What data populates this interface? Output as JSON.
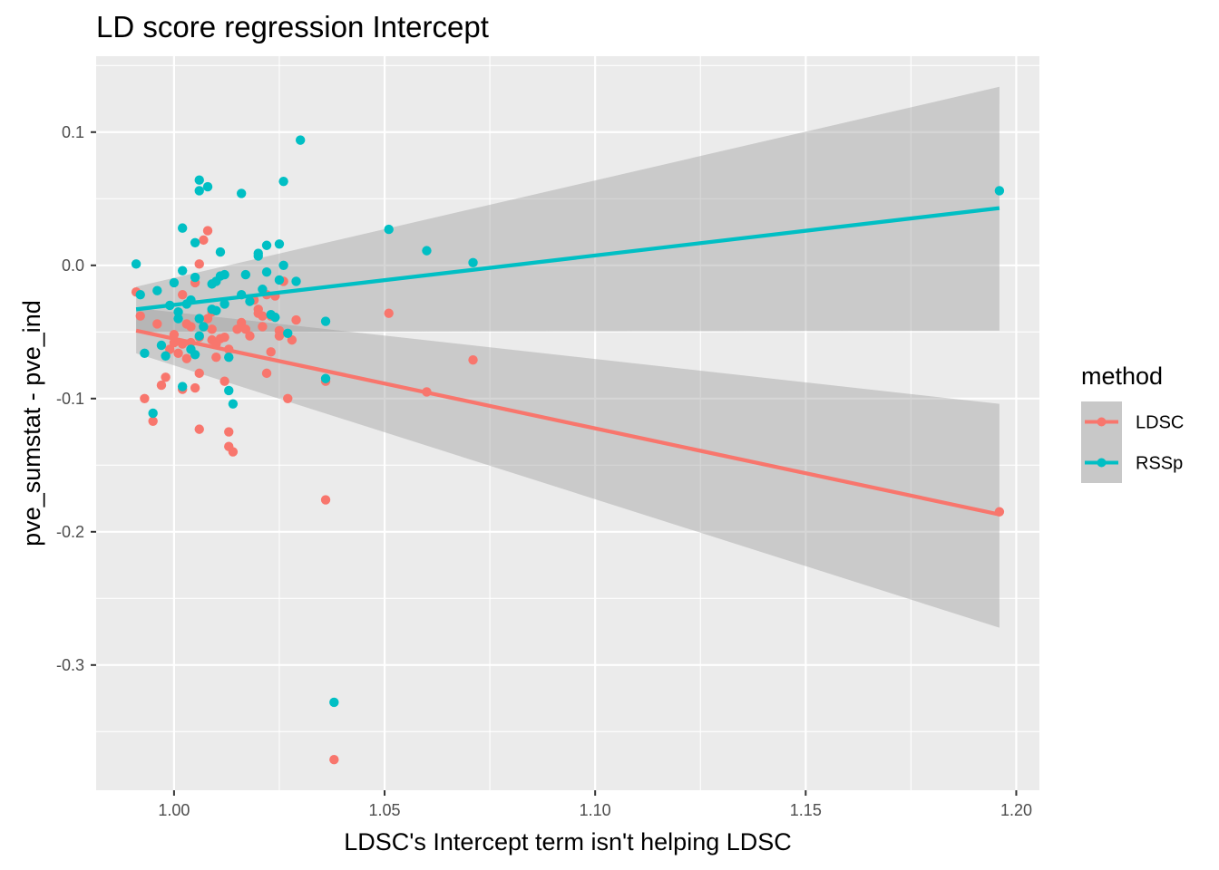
{
  "chart_data": {
    "type": "scatter",
    "title": "LD score regression Intercept",
    "xlabel": "LDSC's Intercept term isn't helping LDSC",
    "ylabel": "pve_sumstat - pve_ind",
    "xlim": [
      0.9815,
      1.2055
    ],
    "ylim": [
      -0.394,
      0.157
    ],
    "x_ticks": [
      1.0,
      1.05,
      1.1,
      1.15,
      1.2
    ],
    "x_tick_labels": [
      "1.00",
      "1.05",
      "1.10",
      "1.15",
      "1.20"
    ],
    "y_ticks": [
      -0.3,
      -0.2,
      -0.1,
      0.0,
      0.1
    ],
    "y_tick_labels": [
      "-0.3",
      "-0.2",
      "-0.1",
      "0.0",
      "0.1"
    ],
    "grid": true,
    "legend": {
      "title": "method",
      "position": "right"
    },
    "series": [
      {
        "name": "LDSC",
        "color": "#F8766D",
        "trend": {
          "x": [
            0.991,
            1.196
          ],
          "y": [
            -0.049,
            -0.187
          ],
          "ci_lower": [
            -0.066,
            -0.272
          ],
          "ci_upper": [
            -0.032,
            -0.104
          ]
        },
        "points": [
          [
            0.991,
            -0.02
          ],
          [
            0.992,
            -0.038
          ],
          [
            0.993,
            -0.1
          ],
          [
            0.995,
            -0.117
          ],
          [
            0.996,
            -0.044
          ],
          [
            0.997,
            -0.09
          ],
          [
            0.998,
            -0.084
          ],
          [
            0.999,
            -0.063
          ],
          [
            1.0,
            -0.058
          ],
          [
            1.0,
            -0.052
          ],
          [
            1.001,
            -0.066
          ],
          [
            1.002,
            -0.059
          ],
          [
            1.002,
            -0.093
          ],
          [
            1.002,
            -0.022
          ],
          [
            1.003,
            -0.044
          ],
          [
            1.003,
            -0.07
          ],
          [
            1.004,
            -0.058
          ],
          [
            1.004,
            -0.046
          ],
          [
            1.005,
            -0.092
          ],
          [
            1.005,
            -0.013
          ],
          [
            1.006,
            0.001
          ],
          [
            1.006,
            -0.054
          ],
          [
            1.006,
            -0.081
          ],
          [
            1.006,
            -0.123
          ],
          [
            1.007,
            -0.046
          ],
          [
            1.008,
            0.026
          ],
          [
            1.008,
            -0.04
          ],
          [
            1.009,
            -0.056
          ],
          [
            1.009,
            -0.048
          ],
          [
            1.009,
            -0.035
          ],
          [
            1.01,
            -0.059
          ],
          [
            1.01,
            -0.069
          ],
          [
            1.011,
            -0.055
          ],
          [
            1.012,
            -0.054
          ],
          [
            1.012,
            -0.087
          ],
          [
            1.013,
            -0.125
          ],
          [
            1.013,
            -0.136
          ],
          [
            1.013,
            -0.063
          ],
          [
            1.014,
            -0.14
          ],
          [
            1.015,
            -0.048
          ],
          [
            1.016,
            -0.043
          ],
          [
            1.016,
            -0.046
          ],
          [
            1.017,
            -0.048
          ],
          [
            1.018,
            -0.053
          ],
          [
            1.019,
            -0.026
          ],
          [
            1.02,
            -0.036
          ],
          [
            1.02,
            -0.033
          ],
          [
            1.021,
            -0.038
          ],
          [
            1.021,
            -0.046
          ],
          [
            1.022,
            -0.081
          ],
          [
            1.022,
            -0.022
          ],
          [
            1.023,
            -0.038
          ],
          [
            1.023,
            -0.065
          ],
          [
            1.024,
            -0.023
          ],
          [
            1.025,
            -0.049
          ],
          [
            1.025,
            -0.053
          ],
          [
            1.026,
            -0.012
          ],
          [
            1.027,
            -0.1
          ],
          [
            1.028,
            -0.056
          ],
          [
            1.029,
            -0.041
          ],
          [
            1.036,
            -0.087
          ],
          [
            1.036,
            -0.176
          ],
          [
            1.038,
            -0.371
          ],
          [
            1.051,
            -0.036
          ],
          [
            1.06,
            -0.095
          ],
          [
            1.071,
            -0.071
          ],
          [
            1.196,
            -0.185
          ],
          [
            1.007,
            0.019
          ]
        ]
      },
      {
        "name": "RSSp",
        "color": "#00BFC4",
        "trend": {
          "x": [
            0.991,
            1.196
          ],
          "y": [
            -0.033,
            0.043
          ],
          "ci_lower": [
            -0.05,
            -0.049
          ],
          "ci_upper": [
            -0.016,
            0.134
          ]
        },
        "points": [
          [
            0.991,
            0.001
          ],
          [
            0.992,
            -0.022
          ],
          [
            0.993,
            -0.066
          ],
          [
            0.995,
            -0.111
          ],
          [
            0.996,
            -0.019
          ],
          [
            0.997,
            -0.06
          ],
          [
            0.998,
            -0.068
          ],
          [
            0.999,
            -0.03
          ],
          [
            1.0,
            -0.013
          ],
          [
            1.001,
            -0.04
          ],
          [
            1.001,
            -0.035
          ],
          [
            1.002,
            0.028
          ],
          [
            1.002,
            -0.004
          ],
          [
            1.002,
            -0.091
          ],
          [
            1.003,
            -0.029
          ],
          [
            1.004,
            -0.026
          ],
          [
            1.004,
            -0.063
          ],
          [
            1.005,
            -0.009
          ],
          [
            1.005,
            0.017
          ],
          [
            1.005,
            -0.067
          ],
          [
            1.006,
            0.056
          ],
          [
            1.006,
            0.064
          ],
          [
            1.006,
            -0.04
          ],
          [
            1.006,
            -0.053
          ],
          [
            1.007,
            -0.046
          ],
          [
            1.008,
            0.059
          ],
          [
            1.009,
            -0.033
          ],
          [
            1.009,
            -0.014
          ],
          [
            1.01,
            -0.012
          ],
          [
            1.01,
            -0.034
          ],
          [
            1.011,
            -0.008
          ],
          [
            1.011,
            0.01
          ],
          [
            1.012,
            -0.029
          ],
          [
            1.012,
            -0.007
          ],
          [
            1.013,
            -0.069
          ],
          [
            1.013,
            -0.094
          ],
          [
            1.014,
            -0.104
          ],
          [
            1.016,
            0.054
          ],
          [
            1.016,
            -0.022
          ],
          [
            1.017,
            -0.007
          ],
          [
            1.018,
            -0.027
          ],
          [
            1.02,
            0.007
          ],
          [
            1.02,
            0.009
          ],
          [
            1.021,
            -0.018
          ],
          [
            1.022,
            0.015
          ],
          [
            1.022,
            -0.005
          ],
          [
            1.023,
            -0.037
          ],
          [
            1.024,
            -0.039
          ],
          [
            1.025,
            0.016
          ],
          [
            1.025,
            -0.011
          ],
          [
            1.026,
            0.063
          ],
          [
            1.026,
            0.0
          ],
          [
            1.027,
            -0.051
          ],
          [
            1.029,
            -0.012
          ],
          [
            1.03,
            0.094
          ],
          [
            1.036,
            -0.042
          ],
          [
            1.036,
            -0.085
          ],
          [
            1.038,
            -0.328
          ],
          [
            1.051,
            0.027
          ],
          [
            1.06,
            0.011
          ],
          [
            1.071,
            0.002
          ],
          [
            1.196,
            0.056
          ]
        ]
      }
    ]
  }
}
